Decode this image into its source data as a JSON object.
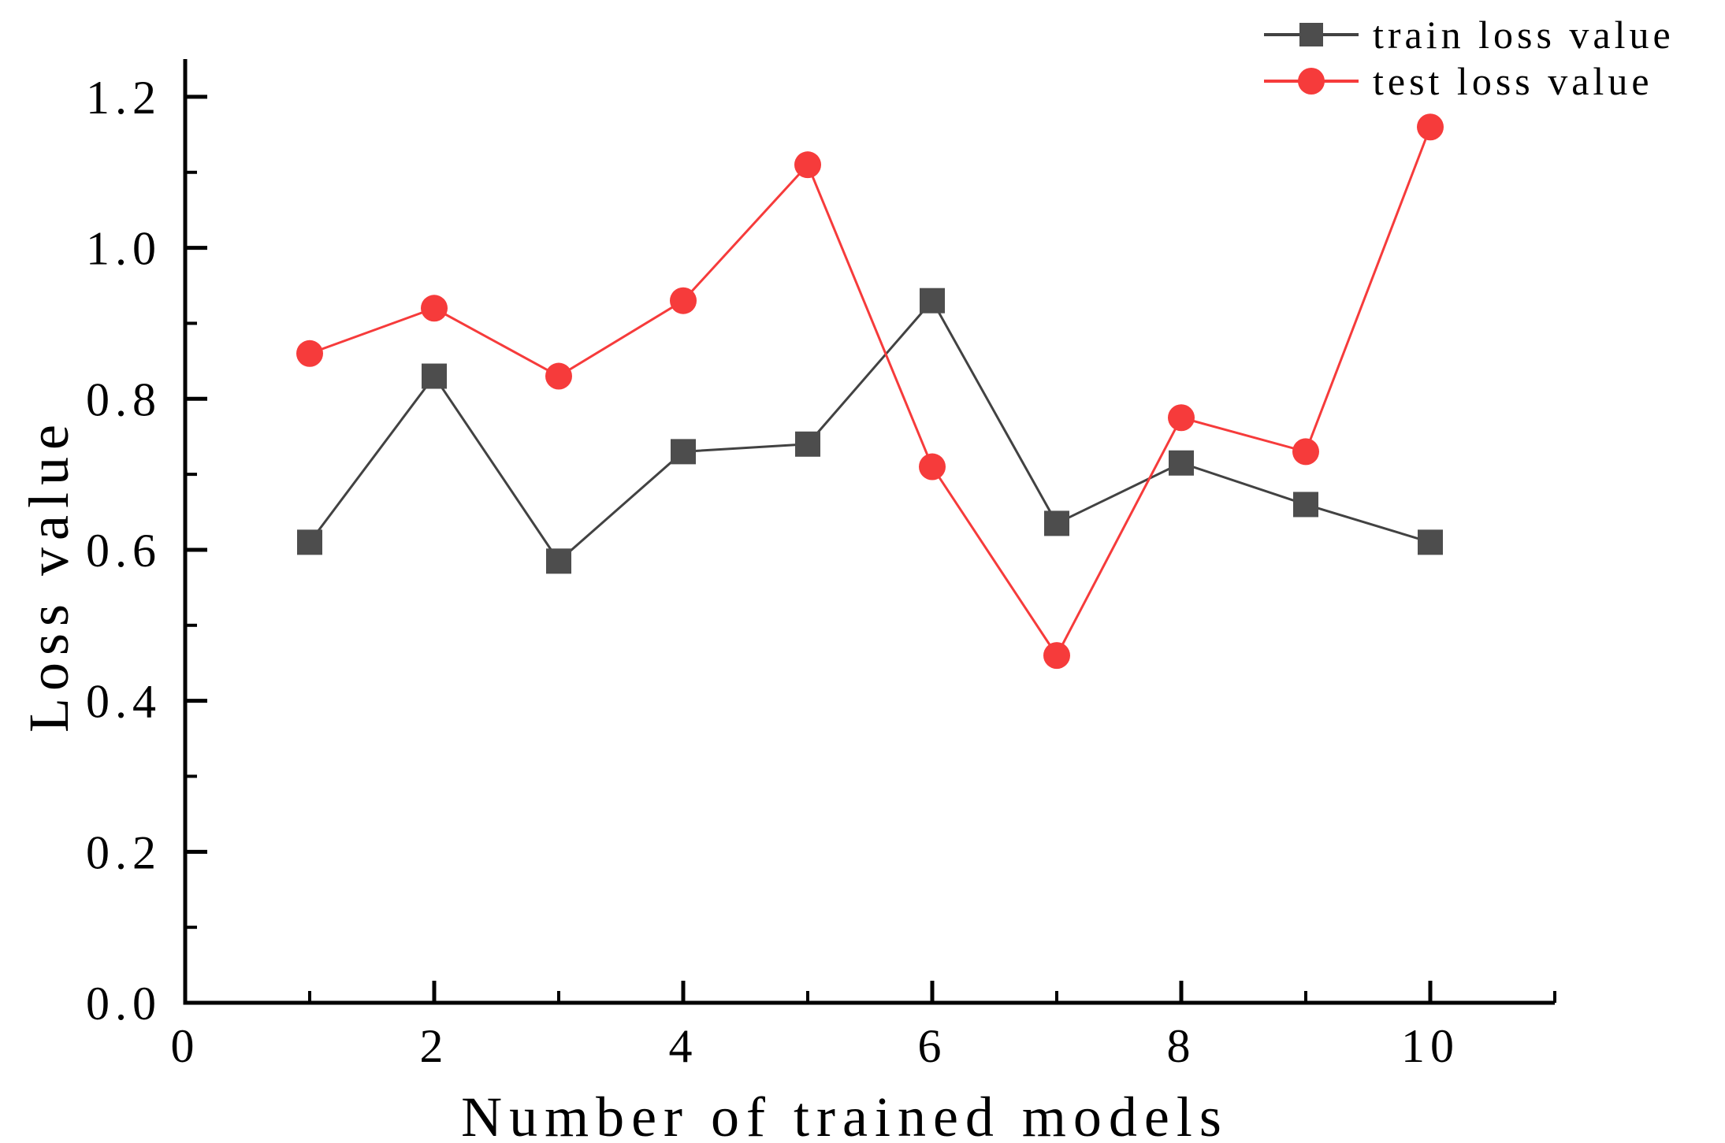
{
  "chart_data": {
    "type": "line",
    "title": "",
    "xlabel": "Number of trained models",
    "ylabel": "Loss value",
    "x": [
      1,
      2,
      3,
      4,
      5,
      6,
      7,
      8,
      9,
      10
    ],
    "series": [
      {
        "name": "train loss value",
        "marker": "square",
        "color": "#4d4d4d",
        "line_color": "#424242",
        "values": [
          0.61,
          0.83,
          0.585,
          0.73,
          0.74,
          0.93,
          0.635,
          0.715,
          0.66,
          0.61
        ]
      },
      {
        "name": "test loss value",
        "marker": "circle",
        "color": "#f63b3b",
        "line_color": "#f63b3b",
        "values": [
          0.86,
          0.92,
          0.83,
          0.93,
          1.11,
          0.71,
          0.46,
          0.775,
          0.73,
          1.16
        ]
      }
    ],
    "xlim": [
      0,
      11
    ],
    "ylim": [
      0,
      1.25
    ],
    "x_major_ticks": [
      0,
      2,
      4,
      6,
      8,
      10
    ],
    "x_minor_ticks": [
      1,
      3,
      5,
      7,
      9,
      11
    ],
    "x_tick_labels": [
      "0",
      "2",
      "4",
      "6",
      "8",
      "10"
    ],
    "y_major_ticks": [
      0.0,
      0.2,
      0.4,
      0.6,
      0.8,
      1.0,
      1.2
    ],
    "y_minor_ticks": [
      0.1,
      0.3,
      0.5,
      0.7,
      0.9,
      1.1
    ],
    "y_tick_labels": [
      "0.0",
      "0.2",
      "0.4",
      "0.6",
      "0.8",
      "1.0",
      "1.2"
    ],
    "legend_position": "top-right",
    "grid": false,
    "axis_color": "#000000",
    "background": "#ffffff"
  }
}
